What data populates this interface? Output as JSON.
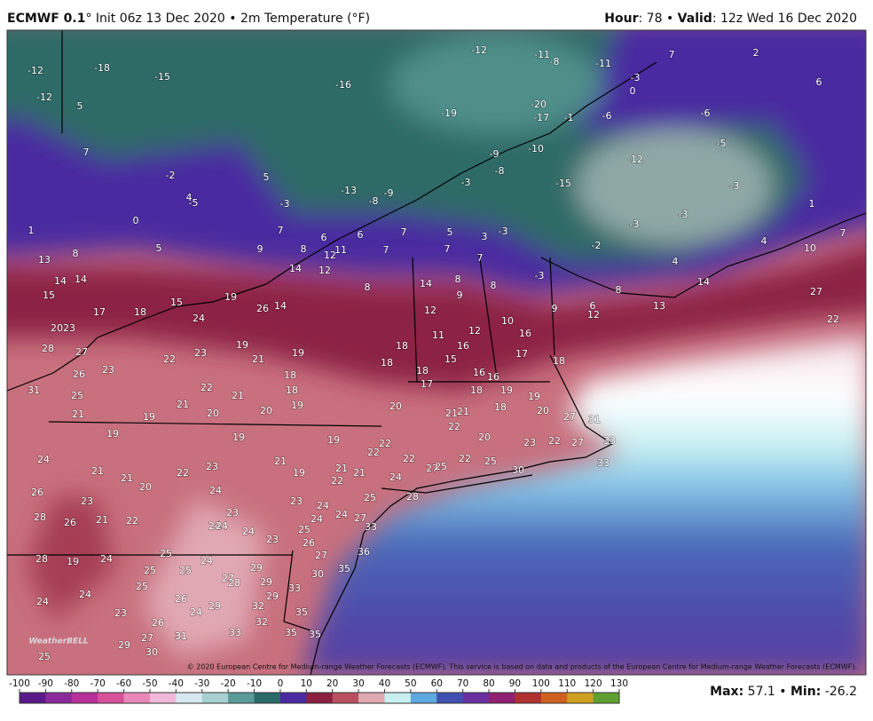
{
  "header": {
    "model": "ECMWF 0.1",
    "init": "° Init 06z 13 Dec 2020 • 2m Temperature (°F)",
    "hour_label": "Hour",
    "hour": ": 78 •",
    "valid_label": "Valid",
    "valid": ": 12z Wed 16 Dec 2020"
  },
  "map": {
    "labels": [
      -12,
      -18,
      -15,
      -12,
      -16,
      -12,
      -11,
      -8,
      -11,
      -3,
      0,
      7,
      2,
      6,
      -20,
      -19,
      -17,
      -1,
      -6,
      -6,
      -5,
      5,
      7,
      -9,
      -10,
      -8,
      -12,
      -15,
      -3,
      -2,
      5,
      4,
      -5,
      -13,
      -9,
      -3,
      -8,
      -3,
      0,
      1,
      7,
      6,
      7,
      6,
      5,
      3,
      -3,
      -2,
      -3,
      -3,
      1,
      7,
      10,
      4,
      8,
      5,
      9,
      8,
      12,
      11,
      7,
      7,
      7,
      13,
      14,
      14,
      15,
      14,
      12,
      8,
      14,
      8,
      9,
      8,
      -3,
      8,
      4,
      14,
      27,
      17,
      18,
      15,
      24,
      19,
      26,
      14,
      12,
      10,
      9,
      6,
      12,
      13,
      22,
      20,
      23,
      27,
      28,
      26,
      23,
      22,
      23,
      19,
      21,
      19,
      18,
      11,
      16,
      12,
      16,
      17,
      18,
      18,
      18,
      15,
      16,
      16,
      18,
      22,
      21,
      18,
      19,
      31,
      25,
      21,
      17,
      18,
      19,
      19,
      21,
      19,
      20,
      20,
      20,
      21,
      21,
      18,
      20,
      27,
      31,
      22,
      20,
      23,
      22,
      27,
      33,
      19,
      19,
      19,
      22,
      22,
      24,
      21,
      21,
      19,
      22,
      22,
      25,
      30,
      27,
      25,
      33,
      21,
      22,
      23,
      21,
      22,
      21,
      24,
      28,
      26,
      20,
      23,
      24,
      23,
      24,
      25,
      28,
      26,
      21,
      22,
      23,
      24,
      24,
      27,
      24,
      24,
      24,
      23,
      25,
      33,
      26,
      28,
      19,
      24,
      25,
      24,
      27,
      36,
      25,
      25,
      29,
      35,
      30,
      25,
      27,
      28,
      29,
      24,
      33,
      29,
      24,
      26,
      29,
      32,
      24,
      23,
      35,
      26,
      32,
      33,
      31,
      35,
      35,
      27,
      29,
      30,
      25
    ]
  },
  "logo": "WeatherBELL",
  "copyright": "© 2020 European Centre for Medium-range Weather Forecasts (ECMWF). This service is based on data and products of the European Centre for Medium-range Weather Forecasts (ECMWF).",
  "colorbar": {
    "ticks": [
      -100,
      -90,
      -80,
      -70,
      -60,
      -50,
      -40,
      -30,
      -20,
      -10,
      0,
      10,
      20,
      30,
      40,
      50,
      60,
      70,
      80,
      90,
      100,
      110,
      120,
      130
    ],
    "colors": [
      "#5a1a8a",
      "#8a2a9a",
      "#b8309a",
      "#d8509a",
      "#e888b8",
      "#f0b8d8",
      "#d8e8f0",
      "#a8d0d0",
      "#5a9a98",
      "#2a6a68",
      "#4a2aa0",
      "#8a2040",
      "#b85060",
      "#e0a8b0",
      "#c8f0f0",
      "#60a8e0",
      "#4050b0",
      "#6a30a0",
      "#902070",
      "#b03030",
      "#d06020",
      "#d0a020",
      "#60a030"
    ]
  },
  "stats": {
    "max_label": "Max",
    "max": 57.1,
    "sep": "•",
    "min_label": "Min",
    "min": -26.2
  }
}
